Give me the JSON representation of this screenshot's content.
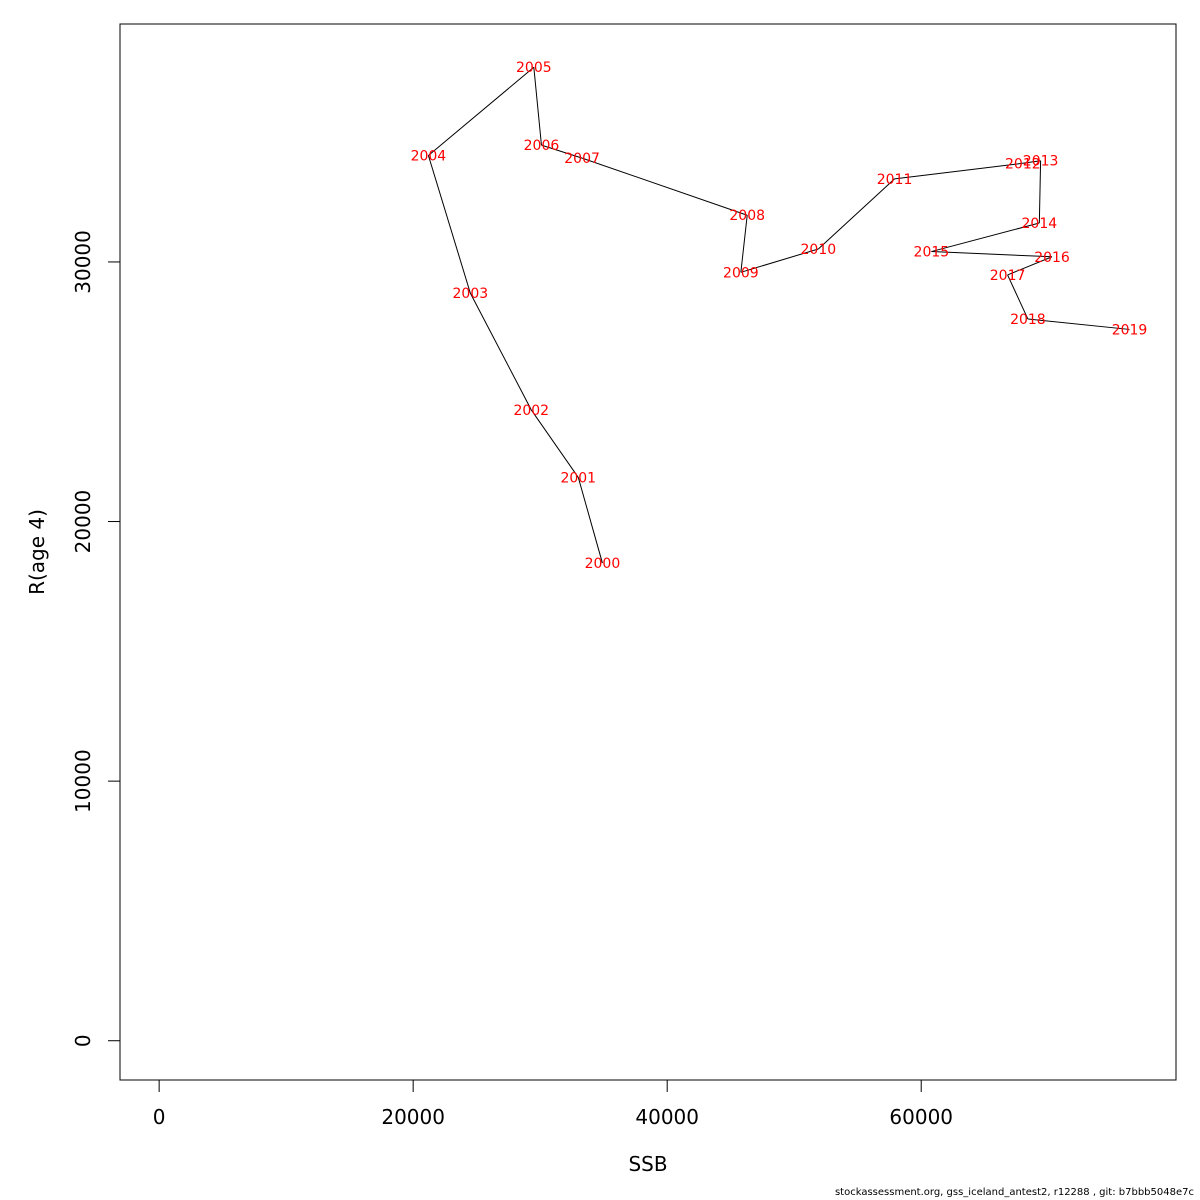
{
  "chart_data": {
    "type": "scatter",
    "connected": true,
    "xlabel": "SSB",
    "ylabel": "R(age 4)",
    "xlim": [
      -3082,
      80060
    ],
    "ylim": [
      -1513,
      39166
    ],
    "xticks": [
      0,
      20000,
      40000,
      60000
    ],
    "yticks": [
      0,
      10000,
      20000,
      30000
    ],
    "xtick_labels": [
      "0",
      "20000",
      "40000",
      "60000"
    ],
    "ytick_labels": [
      "0",
      "10000",
      "20000",
      "30000"
    ],
    "line_color": "#000000",
    "label_color": "#ff0000",
    "points": [
      {
        "label": "2000",
        "x": 34900,
        "y": 18400
      },
      {
        "label": "2001",
        "x": 33000,
        "y": 21700
      },
      {
        "label": "2002",
        "x": 29300,
        "y": 24300
      },
      {
        "label": "2003",
        "x": 24500,
        "y": 28800
      },
      {
        "label": "2004",
        "x": 21200,
        "y": 34100
      },
      {
        "label": "2005",
        "x": 29500,
        "y": 37500
      },
      {
        "label": "2006",
        "x": 30100,
        "y": 34500
      },
      {
        "label": "2007",
        "x": 33300,
        "y": 34000
      },
      {
        "label": "2008",
        "x": 46300,
        "y": 31800
      },
      {
        "label": "2009",
        "x": 45800,
        "y": 29600
      },
      {
        "label": "2010",
        "x": 51900,
        "y": 30500
      },
      {
        "label": "2011",
        "x": 57900,
        "y": 33200
      },
      {
        "label": "2012",
        "x": 68000,
        "y": 33800
      },
      {
        "label": "2013",
        "x": 69400,
        "y": 33900
      },
      {
        "label": "2014",
        "x": 69300,
        "y": 31500
      },
      {
        "label": "2015",
        "x": 60800,
        "y": 30400
      },
      {
        "label": "2016",
        "x": 70300,
        "y": 30200
      },
      {
        "label": "2017",
        "x": 66800,
        "y": 29500
      },
      {
        "label": "2018",
        "x": 68400,
        "y": 27800
      },
      {
        "label": "2019",
        "x": 76400,
        "y": 27400
      }
    ]
  },
  "footer": "stockassessment.org, gss_iceland_antest2, r12288 , git: b7bbb5048e7c"
}
